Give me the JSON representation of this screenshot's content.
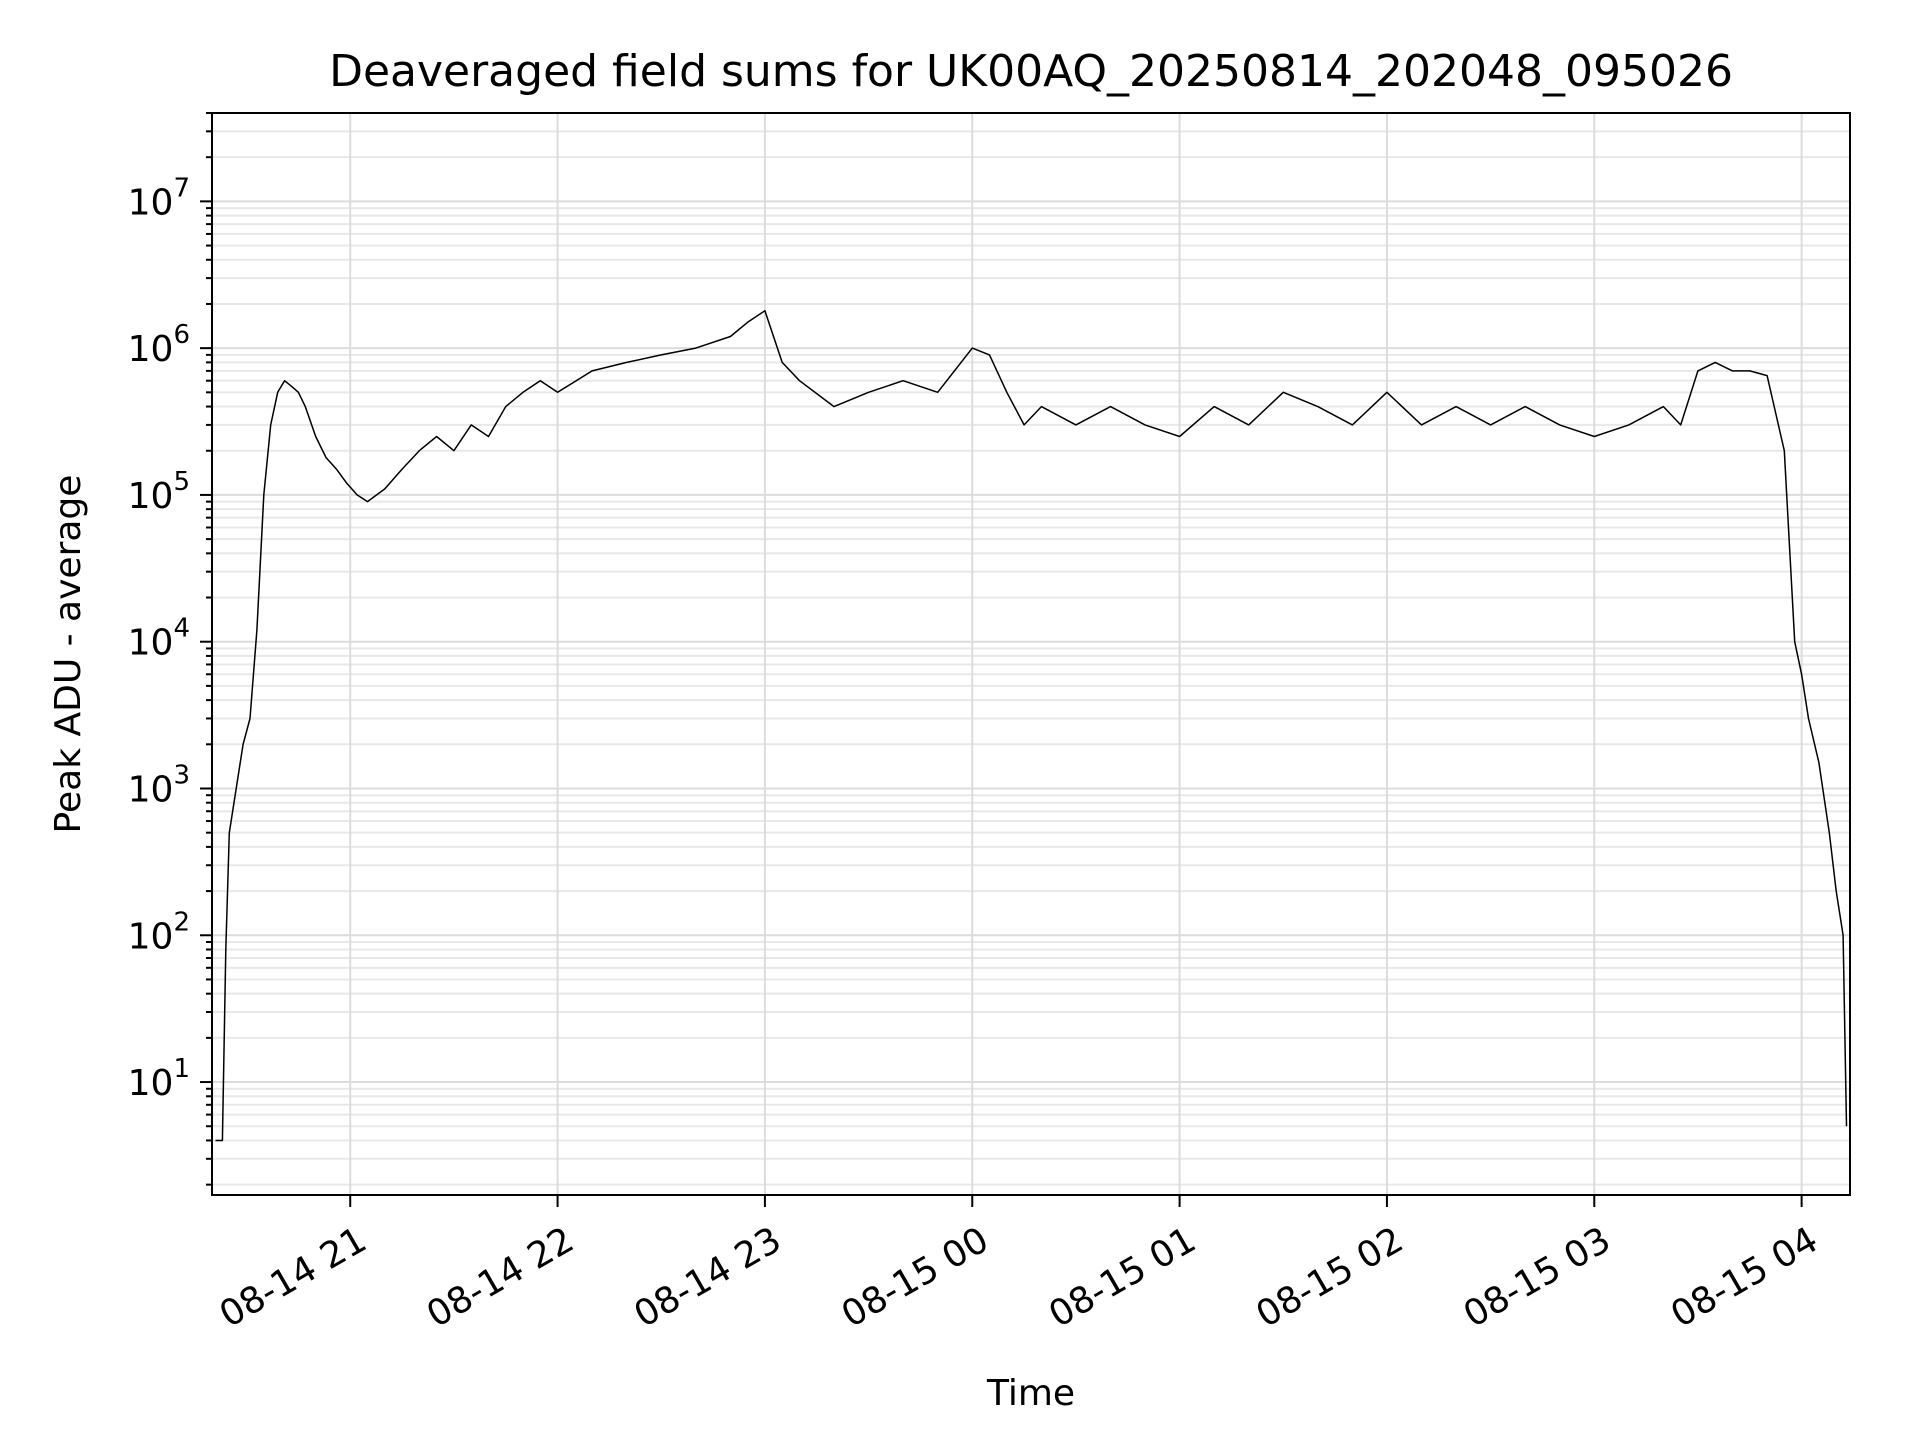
{
  "chart_data": {
    "type": "line",
    "title": "Deaveraged field sums for UK00AQ_20250814_202048_095026",
    "xlabel": "Time",
    "ylabel": "Peak ADU - average",
    "yscale": "log",
    "ylim": [
      1.7,
      40000000
    ],
    "xlim": [
      "08-14 20:20",
      "08-15 04:14"
    ],
    "grid": true,
    "legend": "none",
    "line_color": "#000000",
    "x_ticks": [
      "08-14 21",
      "08-14 22",
      "08-14 23",
      "08-15 00",
      "08-15 01",
      "08-15 02",
      "08-15 03",
      "08-15 04"
    ],
    "y_ticks": [
      {
        "base": "10",
        "exp": "1",
        "value": 10
      },
      {
        "base": "10",
        "exp": "2",
        "value": 100
      },
      {
        "base": "10",
        "exp": "3",
        "value": 1000
      },
      {
        "base": "10",
        "exp": "4",
        "value": 10000
      },
      {
        "base": "10",
        "exp": "5",
        "value": 100000
      },
      {
        "base": "10",
        "exp": "6",
        "value": 1000000
      },
      {
        "base": "10",
        "exp": "7",
        "value": 10000000
      }
    ],
    "series": [
      {
        "x": [
          "08-14 20:21",
          "08-14 20:22",
          "08-14 20:23",
          "08-14 20:24",
          "08-14 20:25",
          "08-14 20:27",
          "08-14 20:29",
          "08-14 20:31",
          "08-14 20:33",
          "08-14 20:35",
          "08-14 20:37",
          "08-14 20:39",
          "08-14 20:41",
          "08-14 20:43",
          "08-14 20:45",
          "08-14 20:47",
          "08-14 20:50",
          "08-14 20:53",
          "08-14 20:56",
          "08-14 20:59",
          "08-14 21:02",
          "08-14 21:05",
          "08-14 21:10",
          "08-14 21:15",
          "08-14 21:20",
          "08-14 21:25",
          "08-14 21:30",
          "08-14 21:35",
          "08-14 21:40",
          "08-14 21:45",
          "08-14 21:50",
          "08-14 21:55",
          "08-14 22:00",
          "08-14 22:10",
          "08-14 22:20",
          "08-14 22:30",
          "08-14 22:40",
          "08-14 22:50",
          "08-14 22:55",
          "08-14 23:00",
          "08-14 23:05",
          "08-14 23:10",
          "08-14 23:20",
          "08-14 23:30",
          "08-14 23:40",
          "08-14 23:50",
          "08-15 00:00",
          "08-15 00:05",
          "08-15 00:10",
          "08-15 00:15",
          "08-15 00:20",
          "08-15 00:30",
          "08-15 00:40",
          "08-15 00:50",
          "08-15 01:00",
          "08-15 01:10",
          "08-15 01:20",
          "08-15 01:30",
          "08-15 01:40",
          "08-15 01:50",
          "08-15 02:00",
          "08-15 02:10",
          "08-15 02:20",
          "08-15 02:30",
          "08-15 02:40",
          "08-15 02:50",
          "08-15 03:00",
          "08-15 03:10",
          "08-15 03:20",
          "08-15 03:25",
          "08-15 03:30",
          "08-15 03:35",
          "08-15 03:40",
          "08-15 03:45",
          "08-15 03:50",
          "08-15 03:55",
          "08-15 03:58",
          "08-15 04:00",
          "08-15 04:02",
          "08-15 04:05",
          "08-15 04:08",
          "08-15 04:10",
          "08-15 04:12",
          "08-15 04:13"
        ],
        "y": [
          4,
          4,
          4,
          80,
          500,
          1000,
          2000,
          3000,
          12000,
          100000,
          300000,
          500000,
          600000,
          550000,
          500000,
          400000,
          250000,
          180000,
          150000,
          120000,
          100000,
          90000,
          110000,
          150000,
          200000,
          250000,
          200000,
          300000,
          250000,
          400000,
          500000,
          600000,
          500000,
          700000,
          800000,
          900000,
          1000000,
          1200000,
          1500000,
          1800000,
          800000,
          600000,
          400000,
          500000,
          600000,
          500000,
          1000000,
          900000,
          500000,
          300000,
          400000,
          300000,
          400000,
          300000,
          250000,
          400000,
          300000,
          500000,
          400000,
          300000,
          500000,
          300000,
          400000,
          300000,
          400000,
          300000,
          250000,
          300000,
          400000,
          300000,
          700000,
          800000,
          700000,
          700000,
          650000,
          200000,
          10000,
          6000,
          3000,
          1500,
          500,
          200,
          100,
          5
        ]
      }
    ]
  }
}
